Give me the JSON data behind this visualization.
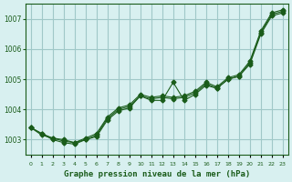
{
  "title": "Graphe pression niveau de la mer (hPa)",
  "background_color": "#d8f0f0",
  "grid_color": "#a0c8c8",
  "line_color": "#1a5c1a",
  "x_labels": [
    "0",
    "1",
    "2",
    "3",
    "4",
    "5",
    "6",
    "7",
    "8",
    "9",
    "10",
    "11",
    "12",
    "13",
    "14",
    "15",
    "16",
    "17",
    "18",
    "19",
    "20",
    "21",
    "22",
    "23"
  ],
  "ylim": [
    1002.5,
    1007.5
  ],
  "yticks": [
    1003,
    1004,
    1005,
    1006,
    1007
  ],
  "series1": [
    1003.4,
    1003.2,
    1003.0,
    1002.9,
    1002.85,
    1003.0,
    1003.1,
    1003.65,
    1003.95,
    1004.05,
    1004.45,
    1004.3,
    1004.3,
    1004.9,
    1004.3,
    1004.5,
    1004.8,
    1004.7,
    1005.0,
    1005.1,
    1005.5,
    1006.5,
    1007.1,
    1007.2
  ],
  "series2": [
    1003.4,
    1003.2,
    1003.05,
    1003.0,
    1002.9,
    1003.0,
    1003.15,
    1003.7,
    1004.0,
    1004.1,
    1004.45,
    1004.35,
    1004.4,
    1004.35,
    1004.4,
    1004.55,
    1004.85,
    1004.7,
    1005.0,
    1005.1,
    1005.55,
    1006.55,
    1007.15,
    1007.25
  ],
  "series3": [
    1003.4,
    1003.15,
    1003.05,
    1002.95,
    1002.9,
    1003.05,
    1003.2,
    1003.75,
    1004.05,
    1004.15,
    1004.5,
    1004.4,
    1004.45,
    1004.4,
    1004.45,
    1004.6,
    1004.9,
    1004.75,
    1005.05,
    1005.15,
    1005.6,
    1006.6,
    1007.2,
    1007.3
  ]
}
